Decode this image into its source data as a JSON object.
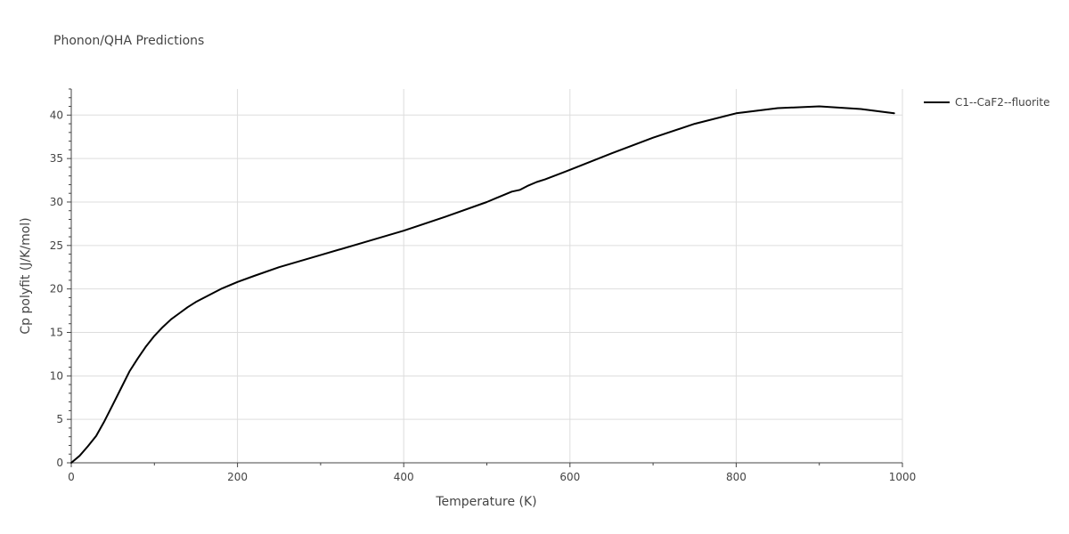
{
  "chart_data": {
    "type": "line",
    "title": "Phonon/QHA Predictions",
    "xlabel": "Temperature (K)",
    "ylabel": "Cp polyfit (J/K/mol)",
    "xlim": [
      0,
      1000
    ],
    "ylim": [
      0,
      43
    ],
    "xticks": [
      0,
      200,
      400,
      600,
      800,
      1000
    ],
    "yticks": [
      0,
      5,
      10,
      15,
      20,
      25,
      30,
      35,
      40
    ],
    "grid": true,
    "legend_position": "top-right",
    "colors": {
      "line": "#000000",
      "grid": "#dddddd",
      "axis": "#444444"
    },
    "series": [
      {
        "name": "C1--CaF2--fluorite",
        "x": [
          0,
          10,
          20,
          30,
          40,
          50,
          60,
          70,
          80,
          90,
          100,
          110,
          120,
          130,
          140,
          150,
          160,
          180,
          200,
          220,
          250,
          300,
          350,
          400,
          450,
          500,
          510,
          520,
          530,
          540,
          550,
          560,
          570,
          600,
          650,
          700,
          750,
          800,
          850,
          900,
          950,
          990
        ],
        "y": [
          0,
          0.8,
          1.9,
          3.1,
          4.8,
          6.7,
          8.6,
          10.5,
          12.0,
          13.4,
          14.6,
          15.6,
          16.5,
          17.2,
          17.9,
          18.5,
          19.0,
          20.0,
          20.8,
          21.5,
          22.5,
          23.9,
          25.3,
          26.7,
          28.3,
          30.0,
          30.4,
          30.8,
          31.2,
          31.4,
          31.9,
          32.3,
          32.6,
          33.7,
          35.6,
          37.4,
          39.0,
          40.2,
          40.8,
          41.0,
          40.7,
          40.2
        ]
      }
    ]
  }
}
